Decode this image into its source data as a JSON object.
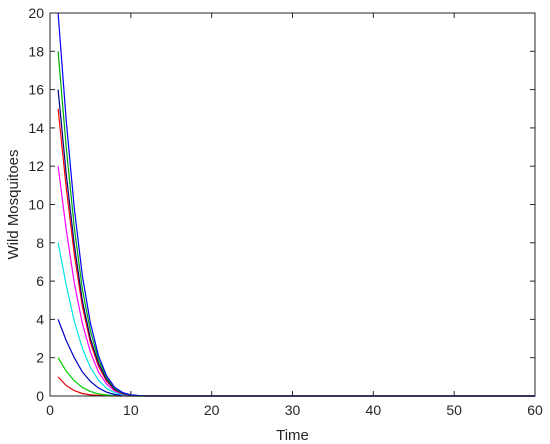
{
  "chart_data": {
    "type": "line",
    "xlabel": "Time",
    "ylabel": "Wild Mosquitoes",
    "xlim": [
      0,
      60
    ],
    "ylim": [
      0,
      20
    ],
    "xticks": [
      0,
      10,
      20,
      30,
      40,
      50,
      60
    ],
    "yticks": [
      0,
      2,
      4,
      6,
      8,
      10,
      12,
      14,
      16,
      18,
      20
    ],
    "grid": false,
    "legend": "none",
    "x": [
      1,
      2,
      3,
      4,
      5,
      6,
      7,
      8,
      9,
      10,
      11,
      12,
      15,
      20,
      30,
      40,
      50,
      60
    ],
    "series": [
      {
        "color": "#0000ff",
        "values": [
          20,
          14.4,
          9.8,
          6.3,
          3.8,
          2.1,
          1.05,
          0.45,
          0.18,
          0.06,
          0.02,
          0.01,
          0,
          0,
          0,
          0,
          0,
          0
        ]
      },
      {
        "color": "#00aa00",
        "values": [
          18,
          13.0,
          8.8,
          5.6,
          3.4,
          1.9,
          0.95,
          0.4,
          0.15,
          0.05,
          0.02,
          0.01,
          0,
          0,
          0,
          0,
          0,
          0
        ]
      },
      {
        "color": "#000080",
        "values": [
          16,
          11.6,
          7.9,
          5.0,
          3.0,
          1.7,
          0.85,
          0.35,
          0.13,
          0.04,
          0.01,
          0,
          0,
          0,
          0,
          0,
          0,
          0
        ]
      },
      {
        "color": "#ff0000",
        "values": [
          15,
          10.9,
          7.4,
          4.7,
          2.8,
          1.55,
          0.78,
          0.32,
          0.12,
          0.04,
          0.01,
          0,
          0,
          0,
          0,
          0,
          0,
          0
        ]
      },
      {
        "color": "#ff00ff",
        "values": [
          12,
          8.7,
          5.9,
          3.8,
          2.3,
          1.25,
          0.62,
          0.26,
          0.1,
          0.03,
          0.01,
          0,
          0,
          0,
          0,
          0,
          0,
          0
        ]
      },
      {
        "color": "#00e5e5",
        "values": [
          8,
          5.8,
          3.9,
          2.5,
          1.5,
          0.82,
          0.4,
          0.17,
          0.06,
          0.02,
          0,
          0,
          0,
          0,
          0,
          0,
          0,
          0
        ]
      },
      {
        "color": "#0000c8",
        "values": [
          4,
          2.9,
          2.0,
          1.26,
          0.76,
          0.42,
          0.2,
          0.08,
          0.03,
          0.01,
          0,
          0,
          0,
          0,
          0,
          0,
          0,
          0
        ]
      },
      {
        "color": "#00cc00",
        "values": [
          2,
          1.3,
          0.8,
          0.45,
          0.24,
          0.11,
          0.05,
          0.02,
          0.01,
          0,
          0,
          0,
          0,
          0,
          0,
          0,
          0,
          0
        ]
      },
      {
        "color": "#e00000",
        "values": [
          1,
          0.55,
          0.28,
          0.13,
          0.06,
          0.03,
          0.01,
          0,
          0,
          0,
          0,
          0,
          0,
          0,
          0,
          0,
          0,
          0
        ]
      }
    ]
  }
}
